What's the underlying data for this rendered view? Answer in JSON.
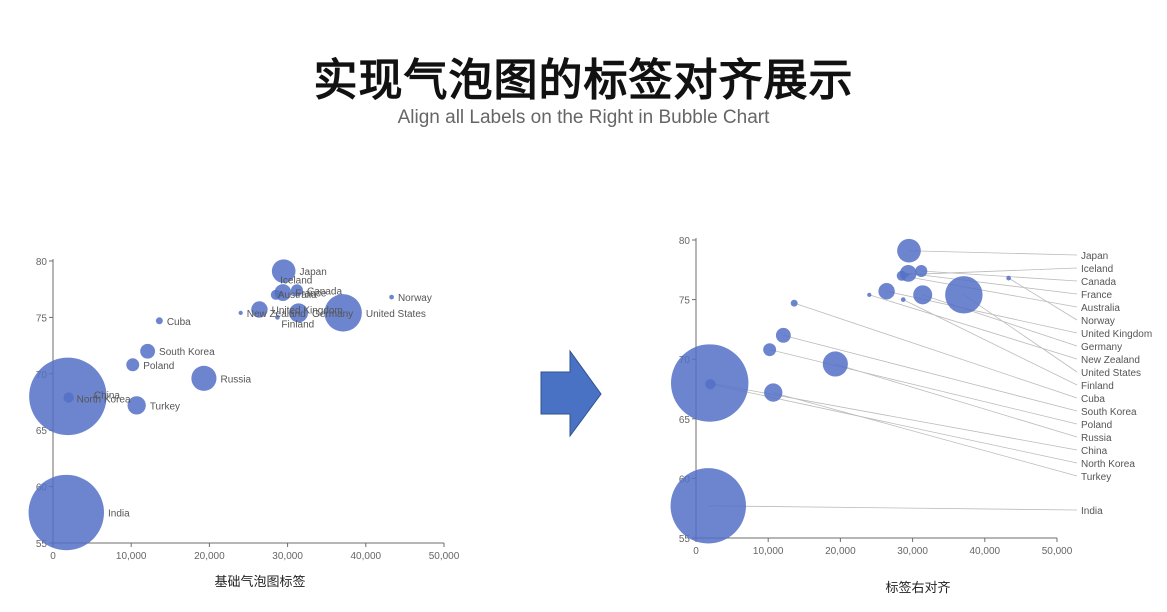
{
  "header": {
    "title": "实现气泡图的标签对齐展示",
    "subtitle": "Align all Labels on the Right in Bubble Chart"
  },
  "colors": {
    "bubble": "#5470c6",
    "axis": "#6e6e6e",
    "label": "#555555",
    "guide": "#bbbbbb"
  },
  "chart_data": [
    {
      "type": "scatter",
      "title": "基础气泡图标签",
      "label_align": "next-to-bubble",
      "xlim": [
        0,
        50000
      ],
      "ylim": [
        55,
        80
      ],
      "xticks": [
        "0",
        "10,000",
        "20,000",
        "30,000",
        "40,000",
        "50,000"
      ],
      "yticks": [
        "55",
        "60",
        "65",
        "70",
        "75",
        "80"
      ],
      "points": [
        {
          "name": "Japan",
          "x": 29500,
          "y": 79.1,
          "size": 127
        },
        {
          "name": "Iceland",
          "x": 29300,
          "y": 77.1,
          "size": 0.3
        },
        {
          "name": "Canada",
          "x": 31200,
          "y": 77.4,
          "size": 33
        },
        {
          "name": "France",
          "x": 29400,
          "y": 77.2,
          "size": 64
        },
        {
          "name": "Australia",
          "x": 28500,
          "y": 77.0,
          "size": 23
        },
        {
          "name": "Norway",
          "x": 43300,
          "y": 76.8,
          "size": 5
        },
        {
          "name": "United Kingdom",
          "x": 26400,
          "y": 75.7,
          "size": 61
        },
        {
          "name": "Germany",
          "x": 31400,
          "y": 75.4,
          "size": 82
        },
        {
          "name": "New Zealand",
          "x": 24000,
          "y": 75.4,
          "size": 4
        },
        {
          "name": "United States",
          "x": 37100,
          "y": 75.4,
          "size": 318
        },
        {
          "name": "Finland",
          "x": 28700,
          "y": 75.0,
          "size": 5
        },
        {
          "name": "Cuba",
          "x": 13600,
          "y": 74.7,
          "size": 11
        },
        {
          "name": "South Korea",
          "x": 12100,
          "y": 72.0,
          "size": 50
        },
        {
          "name": "Poland",
          "x": 10200,
          "y": 70.8,
          "size": 38
        },
        {
          "name": "Russia",
          "x": 19300,
          "y": 69.6,
          "size": 143
        },
        {
          "name": "China",
          "x": 1900,
          "y": 68.0,
          "size": 1360
        },
        {
          "name": "North Korea",
          "x": 2000,
          "y": 67.9,
          "size": 24
        },
        {
          "name": "Turkey",
          "x": 10700,
          "y": 67.2,
          "size": 76
        },
        {
          "name": "India",
          "x": 1700,
          "y": 57.7,
          "size": 1290
        }
      ]
    },
    {
      "type": "scatter",
      "title": "标签右对齐",
      "label_align": "right",
      "xlim": [
        0,
        50000
      ],
      "ylim": [
        55,
        80
      ],
      "xticks": [
        "0",
        "10,000",
        "20,000",
        "30,000",
        "40,000",
        "50,000"
      ],
      "yticks": [
        "55",
        "60",
        "65",
        "70",
        "75",
        "80"
      ],
      "points": [
        {
          "name": "Japan",
          "x": 29500,
          "y": 79.1,
          "size": 127
        },
        {
          "name": "Iceland",
          "x": 29300,
          "y": 77.1,
          "size": 0.3
        },
        {
          "name": "Canada",
          "x": 31200,
          "y": 77.4,
          "size": 33
        },
        {
          "name": "France",
          "x": 29400,
          "y": 77.2,
          "size": 64
        },
        {
          "name": "Australia",
          "x": 28500,
          "y": 77.0,
          "size": 23
        },
        {
          "name": "Norway",
          "x": 43300,
          "y": 76.8,
          "size": 5
        },
        {
          "name": "United Kingdom",
          "x": 26400,
          "y": 75.7,
          "size": 61
        },
        {
          "name": "Germany",
          "x": 31400,
          "y": 75.4,
          "size": 82
        },
        {
          "name": "New Zealand",
          "x": 24000,
          "y": 75.4,
          "size": 4
        },
        {
          "name": "United States",
          "x": 37100,
          "y": 75.4,
          "size": 318
        },
        {
          "name": "Finland",
          "x": 28700,
          "y": 75.0,
          "size": 5
        },
        {
          "name": "Cuba",
          "x": 13600,
          "y": 74.7,
          "size": 11
        },
        {
          "name": "South Korea",
          "x": 12100,
          "y": 72.0,
          "size": 50
        },
        {
          "name": "Poland",
          "x": 10200,
          "y": 70.8,
          "size": 38
        },
        {
          "name": "Russia",
          "x": 19300,
          "y": 69.6,
          "size": 143
        },
        {
          "name": "China",
          "x": 1900,
          "y": 68.0,
          "size": 1360
        },
        {
          "name": "North Korea",
          "x": 2000,
          "y": 67.9,
          "size": 24
        },
        {
          "name": "Turkey",
          "x": 10700,
          "y": 67.2,
          "size": 76
        },
        {
          "name": "India",
          "x": 1700,
          "y": 57.7,
          "size": 1290
        }
      ]
    }
  ],
  "arrow_icon": "right-arrow-icon"
}
